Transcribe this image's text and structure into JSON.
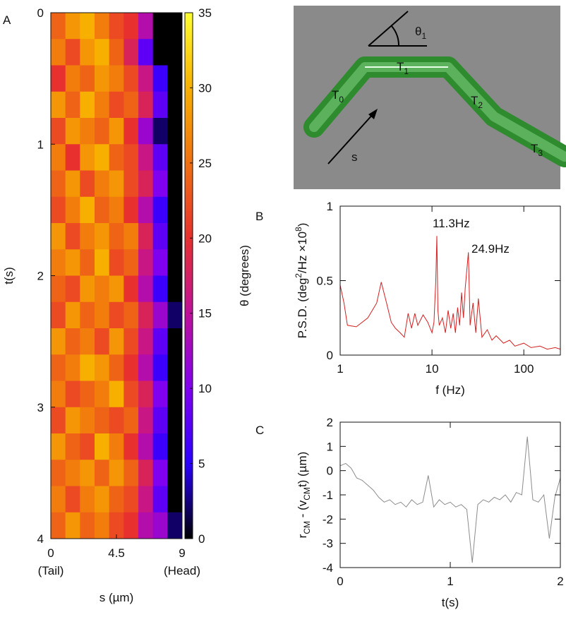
{
  "chart_data": [
    {
      "type": "heatmap",
      "panel": "A",
      "xlabel": "s (µm)",
      "ylabel": "t(s)",
      "clabel": "θ (degrees)",
      "xlim": [
        0,
        9
      ],
      "xticks": [
        0,
        4.5,
        9
      ],
      "end_labels": [
        "(Tail)",
        "(Head)"
      ],
      "ylim": [
        0,
        4
      ],
      "y_reversed": true,
      "yticks": [
        0,
        1,
        2,
        3,
        4
      ],
      "clim": [
        0,
        35
      ],
      "cticks": [
        0,
        5,
        10,
        15,
        20,
        25,
        30,
        35
      ],
      "colormap": [
        "#000000",
        "#2a00ff",
        "#8000f0",
        "#c0109a",
        "#e8302e",
        "#f07010",
        "#f8b000",
        "#ffff30"
      ],
      "values": [
        [
          24,
          28,
          30,
          26,
          22,
          20,
          14,
          0,
          0
        ],
        [
          26,
          22,
          28,
          30,
          24,
          18,
          8,
          0,
          0
        ],
        [
          20,
          26,
          24,
          28,
          26,
          22,
          16,
          6,
          0
        ],
        [
          28,
          24,
          30,
          26,
          22,
          24,
          18,
          8,
          0
        ],
        [
          22,
          28,
          26,
          24,
          28,
          20,
          12,
          2,
          0
        ],
        [
          26,
          20,
          28,
          30,
          24,
          22,
          16,
          8,
          0
        ],
        [
          24,
          28,
          22,
          26,
          28,
          22,
          18,
          10,
          0
        ],
        [
          22,
          26,
          30,
          24,
          26,
          20,
          14,
          6,
          0
        ],
        [
          28,
          22,
          26,
          28,
          24,
          26,
          18,
          8,
          0
        ],
        [
          26,
          28,
          24,
          30,
          22,
          24,
          16,
          10,
          0
        ],
        [
          24,
          22,
          28,
          26,
          28,
          20,
          14,
          6,
          0
        ],
        [
          22,
          28,
          24,
          26,
          22,
          24,
          18,
          12,
          2
        ],
        [
          28,
          24,
          26,
          22,
          28,
          22,
          16,
          8,
          0
        ],
        [
          24,
          26,
          30,
          28,
          24,
          20,
          14,
          6,
          0
        ],
        [
          26,
          22,
          24,
          26,
          30,
          22,
          18,
          10,
          0
        ],
        [
          22,
          28,
          26,
          24,
          22,
          24,
          16,
          8,
          0
        ],
        [
          28,
          24,
          22,
          30,
          26,
          20,
          14,
          6,
          0
        ],
        [
          24,
          26,
          28,
          24,
          28,
          24,
          18,
          10,
          0
        ],
        [
          26,
          22,
          26,
          28,
          24,
          22,
          16,
          8,
          0
        ],
        [
          24,
          28,
          24,
          26,
          22,
          20,
          14,
          12,
          2
        ]
      ]
    },
    {
      "type": "line",
      "panel": "B",
      "xlabel": "f (Hz)",
      "ylabel": [
        "P.S.D. (deg",
        "2",
        "/Hz ×10",
        "8",
        ")"
      ],
      "log_x": true,
      "xlim": [
        1,
        250
      ],
      "xticks": [
        1,
        10,
        100
      ],
      "ylim": [
        0,
        1
      ],
      "yticks": [
        0,
        0.5,
        1
      ],
      "annotations": [
        "11.3Hz",
        "24.9Hz"
      ],
      "series": [
        {
          "color": "#d42020",
          "x": [
            1,
            1.1,
            1.2,
            1.5,
            2,
            2.5,
            2.8,
            3.2,
            3.6,
            4,
            4.5,
            5,
            5.5,
            6,
            6.5,
            7,
            8,
            9,
            10,
            10.5,
            11,
            11.3,
            11.6,
            12,
            13,
            14,
            15,
            16,
            17,
            18,
            19,
            20,
            21,
            22,
            23,
            24.9,
            26,
            28,
            30,
            32,
            35,
            40,
            45,
            50,
            60,
            70,
            80,
            100,
            120,
            150,
            180,
            220,
            250
          ],
          "values": [
            0.47,
            0.35,
            0.2,
            0.19,
            0.25,
            0.35,
            0.49,
            0.35,
            0.22,
            0.18,
            0.15,
            0.12,
            0.28,
            0.18,
            0.28,
            0.2,
            0.27,
            0.22,
            0.15,
            0.22,
            0.5,
            0.8,
            0.3,
            0.2,
            0.25,
            0.15,
            0.3,
            0.18,
            0.28,
            0.15,
            0.32,
            0.2,
            0.42,
            0.25,
            0.45,
            0.69,
            0.2,
            0.35,
            0.15,
            0.38,
            0.12,
            0.17,
            0.1,
            0.13,
            0.08,
            0.1,
            0.06,
            0.08,
            0.05,
            0.06,
            0.04,
            0.05,
            0.04
          ]
        }
      ]
    },
    {
      "type": "line",
      "panel": "C",
      "xlabel": "t(s)",
      "ylabel": [
        "r",
        "CM",
        " - (v",
        "CM",
        "t) (µm)"
      ],
      "xlim": [
        0,
        2
      ],
      "xticks": [
        0,
        1,
        2
      ],
      "ylim": [
        -4,
        2
      ],
      "yticks": [
        -4,
        -3,
        -2,
        -1,
        0,
        1,
        2
      ],
      "series": [
        {
          "color": "#8c8c8c",
          "x": [
            0,
            0.05,
            0.1,
            0.15,
            0.2,
            0.25,
            0.3,
            0.35,
            0.4,
            0.45,
            0.5,
            0.55,
            0.6,
            0.65,
            0.7,
            0.75,
            0.8,
            0.85,
            0.9,
            0.95,
            1,
            1.05,
            1.1,
            1.15,
            1.2,
            1.25,
            1.3,
            1.35,
            1.4,
            1.45,
            1.5,
            1.55,
            1.6,
            1.65,
            1.7,
            1.75,
            1.8,
            1.85,
            1.9,
            1.95,
            2
          ],
          "values": [
            0.2,
            0.3,
            0.1,
            -0.3,
            -0.4,
            -0.6,
            -0.8,
            -1.1,
            -1.3,
            -1.2,
            -1.4,
            -1.3,
            -1.5,
            -1.2,
            -1.4,
            -1.3,
            -0.2,
            -1.5,
            -1.2,
            -1.4,
            -1.3,
            -1.5,
            -1.4,
            -1.6,
            -3.8,
            -1.4,
            -1.2,
            -1.3,
            -1.1,
            -1.2,
            -1.0,
            -1.3,
            -0.9,
            -1.0,
            1.4,
            -1.2,
            -1.3,
            -1.0,
            -2.8,
            -1.1,
            -0.3
          ]
        }
      ]
    }
  ],
  "diagram": {
    "angle_label": [
      "θ",
      "1"
    ],
    "segments": [
      [
        "T",
        "0"
      ],
      [
        "T",
        "1"
      ],
      [
        "T",
        "2"
      ],
      [
        "T",
        "3"
      ]
    ],
    "arrow_label": "s"
  }
}
